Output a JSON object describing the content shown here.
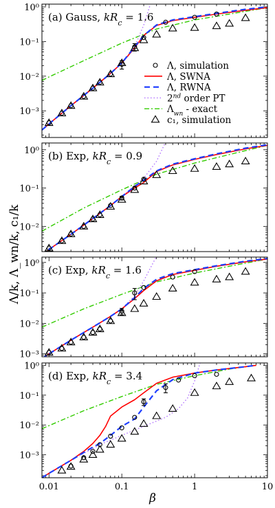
{
  "figure": {
    "ylabel": "Λ/k,  Λ_wn/k,  c₁/k",
    "xlabel": "β",
    "x_ticks": [
      {
        "value": 0.01,
        "label": "0.01"
      },
      {
        "value": 0.1,
        "label": "0.1"
      },
      {
        "value": 1,
        "label": "1"
      },
      {
        "value": 10,
        "label": "10"
      }
    ],
    "y_ticks": [
      {
        "exp": 0,
        "label": "10⁰"
      },
      {
        "exp": -1,
        "label": "10⁻¹"
      },
      {
        "exp": -2,
        "label": "10⁻²"
      },
      {
        "exp": -3,
        "label": "10⁻³"
      }
    ],
    "colors": {
      "swna": "#ff0000",
      "rwna": "#1f3fff",
      "pt2": "#b070ff",
      "exact": "#33cc00",
      "markers": "#000000"
    }
  },
  "chart_data": [
    {
      "type": "line",
      "title": "(a) Gauss, kR_c = 1.6",
      "xscale": "log",
      "yscale": "log",
      "xlim": [
        0.008,
        10
      ],
      "ylim": [
        0.00017,
        1.2
      ],
      "legend": {
        "placement": "right",
        "entries": [
          {
            "key": "lambda_sim",
            "label": "Λ, simulation"
          },
          {
            "key": "swna",
            "label": "Λ, SWNA"
          },
          {
            "key": "rwna",
            "label": "Λ, RWNA"
          },
          {
            "key": "pt2",
            "label": "2nd order PT"
          },
          {
            "key": "exact",
            "label": "Λ_wn - exact"
          },
          {
            "key": "c1_sim",
            "label": "c₁, simulation"
          }
        ]
      },
      "series": [
        {
          "name": "Λ, SWNA",
          "key": "swna",
          "x": [
            0.008,
            0.01,
            0.02,
            0.04,
            0.07,
            0.1,
            0.15,
            0.2,
            0.3,
            0.5,
            1,
            2,
            5,
            10
          ],
          "y": [
            0.00028,
            0.00042,
            0.0014,
            0.0045,
            0.012,
            0.024,
            0.065,
            0.15,
            0.29,
            0.4,
            0.5,
            0.62,
            0.8,
            0.95
          ]
        },
        {
          "name": "Λ, RWNA",
          "key": "rwna",
          "x": [
            0.008,
            0.01,
            0.02,
            0.04,
            0.07,
            0.1,
            0.15,
            0.2,
            0.3,
            0.5,
            1,
            2,
            5,
            10
          ],
          "y": [
            0.00028,
            0.00042,
            0.0014,
            0.0045,
            0.012,
            0.024,
            0.07,
            0.15,
            0.3,
            0.42,
            0.52,
            0.65,
            0.85,
            1.0
          ]
        },
        {
          "name": "2nd order PT",
          "key": "pt2",
          "x": [
            0.008,
            0.01,
            0.02,
            0.04,
            0.07,
            0.1,
            0.15,
            0.2,
            0.25
          ],
          "y": [
            0.00028,
            0.00042,
            0.0014,
            0.0045,
            0.012,
            0.024,
            0.07,
            0.3,
            1.3
          ]
        },
        {
          "name": "Λ_wn - exact",
          "key": "exact",
          "x": [
            0.008,
            0.01,
            0.03,
            0.1,
            0.3,
            1,
            3,
            10
          ],
          "y": [
            0.0075,
            0.0095,
            0.028,
            0.09,
            0.23,
            0.42,
            0.62,
            0.95
          ]
        },
        {
          "name": "Λ, simulation",
          "key": "lambda_sim",
          "x": [
            0.01,
            0.015,
            0.02,
            0.03,
            0.04,
            0.05,
            0.07,
            0.1,
            0.15,
            0.2,
            0.4,
            1,
            2
          ],
          "y": [
            0.00045,
            0.00085,
            0.0014,
            0.0026,
            0.0045,
            0.0066,
            0.0115,
            0.022,
            0.07,
            0.13,
            0.36,
            0.5,
            0.62
          ],
          "err": [
            0,
            0,
            0,
            0,
            0,
            0,
            0,
            0.006,
            0.017,
            0,
            0,
            0,
            0
          ]
        },
        {
          "name": "c₁, simulation",
          "key": "c1_sim",
          "x": [
            0.01,
            0.015,
            0.02,
            0.03,
            0.04,
            0.05,
            0.07,
            0.1,
            0.15,
            0.2,
            0.3,
            0.5,
            1,
            2,
            3,
            5
          ],
          "y": [
            0.00045,
            0.00085,
            0.0014,
            0.0026,
            0.0045,
            0.0066,
            0.0115,
            0.024,
            0.065,
            0.11,
            0.16,
            0.24,
            0.25,
            0.28,
            0.33,
            0.48
          ]
        }
      ]
    },
    {
      "type": "line",
      "title": "(b) Exp, kR_c = 0.9",
      "xscale": "log",
      "yscale": "log",
      "xlim": [
        0.008,
        10
      ],
      "ylim": [
        0.0022,
        1.5
      ],
      "series": [
        {
          "name": "Λ, SWNA",
          "key": "swna",
          "x": [
            0.008,
            0.01,
            0.02,
            0.04,
            0.07,
            0.1,
            0.15,
            0.2,
            0.3,
            0.5,
            1,
            2,
            5,
            10
          ],
          "y": [
            0.0017,
            0.0025,
            0.0062,
            0.016,
            0.035,
            0.06,
            0.1,
            0.14,
            0.27,
            0.4,
            0.56,
            0.75,
            1.05,
            1.3
          ]
        },
        {
          "name": "Λ, RWNA",
          "key": "rwna",
          "x": [
            0.008,
            0.01,
            0.02,
            0.04,
            0.07,
            0.1,
            0.15,
            0.2,
            0.3,
            0.5,
            1,
            2,
            5,
            10
          ],
          "y": [
            0.0017,
            0.0025,
            0.0062,
            0.016,
            0.035,
            0.06,
            0.11,
            0.16,
            0.28,
            0.42,
            0.58,
            0.78,
            1.1,
            1.35
          ]
        },
        {
          "name": "2nd order PT",
          "key": "pt2",
          "x": [
            0.008,
            0.01,
            0.02,
            0.04,
            0.07,
            0.1,
            0.2,
            0.3,
            0.4
          ],
          "y": [
            0.0017,
            0.0025,
            0.0062,
            0.016,
            0.035,
            0.06,
            0.18,
            0.5,
            1.6
          ]
        },
        {
          "name": "Λ_wn - exact",
          "key": "exact",
          "x": [
            0.008,
            0.01,
            0.03,
            0.1,
            0.3,
            1,
            3,
            10
          ],
          "y": [
            0.0075,
            0.0095,
            0.03,
            0.09,
            0.23,
            0.45,
            0.75,
            1.3
          ]
        },
        {
          "name": "Λ, simulation",
          "key": "lambda_sim",
          "x": [
            0.01,
            0.015,
            0.02,
            0.03,
            0.04,
            0.05,
            0.07,
            0.1,
            0.15,
            0.2
          ],
          "y": [
            0.0027,
            0.0042,
            0.0063,
            0.01,
            0.0155,
            0.02,
            0.035,
            0.055,
            0.1,
            0.17
          ],
          "err": [
            0,
            0,
            0,
            0,
            0,
            0,
            0,
            0.006,
            0,
            0
          ]
        },
        {
          "name": "c₁, simulation",
          "key": "c1_sim",
          "x": [
            0.01,
            0.015,
            0.02,
            0.03,
            0.04,
            0.05,
            0.07,
            0.1,
            0.15,
            0.2,
            0.3,
            0.5,
            1,
            2,
            3,
            5
          ],
          "y": [
            0.0027,
            0.0042,
            0.0063,
            0.01,
            0.0155,
            0.02,
            0.033,
            0.05,
            0.09,
            0.15,
            0.22,
            0.28,
            0.32,
            0.36,
            0.42,
            0.5
          ]
        }
      ]
    },
    {
      "type": "line",
      "title": "(c) Exp, kR_c = 1.6",
      "xscale": "log",
      "yscale": "log",
      "xlim": [
        0.008,
        10
      ],
      "ylim": [
        0.0008,
        1.5
      ],
      "series": [
        {
          "name": "Λ, SWNA",
          "key": "swna",
          "x": [
            0.008,
            0.01,
            0.02,
            0.04,
            0.07,
            0.1,
            0.15,
            0.2,
            0.3,
            0.5,
            1,
            2,
            5,
            10
          ],
          "y": [
            0.0007,
            0.001,
            0.0028,
            0.0075,
            0.017,
            0.03,
            0.065,
            0.12,
            0.25,
            0.4,
            0.55,
            0.75,
            1.05,
            1.3
          ]
        },
        {
          "name": "Λ, RWNA",
          "key": "rwna",
          "x": [
            0.008,
            0.01,
            0.02,
            0.04,
            0.07,
            0.1,
            0.15,
            0.2,
            0.3,
            0.5,
            1,
            2,
            5,
            10
          ],
          "y": [
            0.0007,
            0.001,
            0.0028,
            0.0075,
            0.017,
            0.03,
            0.07,
            0.14,
            0.28,
            0.43,
            0.58,
            0.78,
            1.1,
            1.35
          ]
        },
        {
          "name": "2nd order PT",
          "key": "pt2",
          "x": [
            0.008,
            0.01,
            0.02,
            0.04,
            0.07,
            0.1,
            0.15,
            0.2,
            0.3
          ],
          "y": [
            0.0007,
            0.001,
            0.0028,
            0.0075,
            0.017,
            0.03,
            0.08,
            0.25,
            1.6
          ]
        },
        {
          "name": "Λ_wn - exact",
          "key": "exact",
          "x": [
            0.008,
            0.01,
            0.03,
            0.1,
            0.3,
            1,
            3,
            10
          ],
          "y": [
            0.0075,
            0.0095,
            0.03,
            0.09,
            0.23,
            0.45,
            0.75,
            1.3
          ]
        },
        {
          "name": "Λ, simulation",
          "key": "lambda_sim",
          "x": [
            0.01,
            0.015,
            0.02,
            0.03,
            0.04,
            0.05,
            0.07,
            0.1,
            0.15,
            0.2,
            0.5,
            1
          ],
          "y": [
            0.0011,
            0.0015,
            0.0024,
            0.0035,
            0.005,
            0.0065,
            0.012,
            0.025,
            0.1,
            0.15,
            0.33,
            0.5
          ],
          "err": [
            0,
            0,
            0,
            0,
            0,
            0,
            0,
            0.006,
            0.04,
            0,
            0,
            0
          ]
        },
        {
          "name": "c₁, simulation",
          "key": "c1_sim",
          "x": [
            0.01,
            0.015,
            0.02,
            0.03,
            0.04,
            0.05,
            0.07,
            0.1,
            0.15,
            0.2,
            0.3,
            0.5,
            1,
            2,
            3,
            5
          ],
          "y": [
            0.0011,
            0.0015,
            0.0024,
            0.0035,
            0.005,
            0.0065,
            0.012,
            0.022,
            0.03,
            0.045,
            0.075,
            0.14,
            0.22,
            0.28,
            0.33,
            0.5
          ]
        }
      ]
    },
    {
      "type": "line",
      "title": "(d) Exp, kR_c = 3.4",
      "xscale": "log",
      "yscale": "log",
      "xlim": [
        0.008,
        10
      ],
      "ylim": [
        0.00017,
        1.2
      ],
      "series": [
        {
          "name": "Λ, SWNA",
          "key": "swna",
          "x": [
            0.008,
            0.01,
            0.02,
            0.03,
            0.04,
            0.05,
            0.06,
            0.07,
            0.1,
            0.15,
            0.2,
            0.3,
            0.5,
            1,
            2,
            5,
            7
          ],
          "y": [
            0.00017,
            0.00024,
            0.00065,
            0.0013,
            0.0024,
            0.0045,
            0.009,
            0.02,
            0.04,
            0.07,
            0.12,
            0.25,
            0.4,
            0.55,
            0.7,
            0.9,
            1.0
          ]
        },
        {
          "name": "Λ, RWNA",
          "key": "rwna",
          "x": [
            0.008,
            0.01,
            0.02,
            0.03,
            0.04,
            0.05,
            0.07,
            0.1,
            0.15,
            0.2,
            0.3,
            0.5,
            1,
            2,
            5,
            7
          ],
          "y": [
            0.00017,
            0.00024,
            0.00065,
            0.0012,
            0.0018,
            0.0024,
            0.0045,
            0.009,
            0.016,
            0.04,
            0.14,
            0.33,
            0.55,
            0.7,
            0.9,
            1.0
          ]
        },
        {
          "name": "2nd order PT",
          "key": "pt2",
          "x": [
            0.008,
            0.01,
            0.02,
            0.05,
            0.1,
            0.2,
            0.4,
            0.6,
            0.8,
            1.0,
            1.2
          ],
          "y": [
            0.00017,
            0.00024,
            0.00065,
            0.0022,
            0.0045,
            0.009,
            0.018,
            0.035,
            0.08,
            0.3,
            1.3
          ]
        },
        {
          "name": "Λ_wn - exact",
          "key": "exact",
          "x": [
            0.008,
            0.01,
            0.03,
            0.1,
            0.3,
            1,
            3,
            7
          ],
          "y": [
            0.0075,
            0.0095,
            0.03,
            0.09,
            0.23,
            0.45,
            0.75,
            1.0
          ]
        },
        {
          "name": "Λ, simulation",
          "key": "lambda_sim",
          "x": [
            0.02,
            0.03,
            0.04,
            0.05,
            0.07,
            0.1,
            0.15,
            0.2,
            0.4,
            0.6,
            1,
            2
          ],
          "y": [
            0.00042,
            0.0008,
            0.0013,
            0.0022,
            0.0042,
            0.008,
            0.018,
            0.06,
            0.18,
            0.32,
            0.45,
            0.5
          ],
          "err": [
            0,
            0,
            0,
            0,
            0,
            0,
            0,
            0.015,
            0.06,
            0,
            0,
            0
          ]
        },
        {
          "name": "c₁, simulation",
          "key": "c1_sim",
          "x": [
            0.015,
            0.02,
            0.03,
            0.04,
            0.05,
            0.07,
            0.1,
            0.15,
            0.2,
            0.3,
            0.5,
            1,
            2,
            3,
            6
          ],
          "y": [
            0.0003,
            0.0004,
            0.0007,
            0.001,
            0.0015,
            0.0022,
            0.0035,
            0.006,
            0.011,
            0.02,
            0.035,
            0.12,
            0.2,
            0.28,
            0.37
          ]
        }
      ]
    }
  ]
}
